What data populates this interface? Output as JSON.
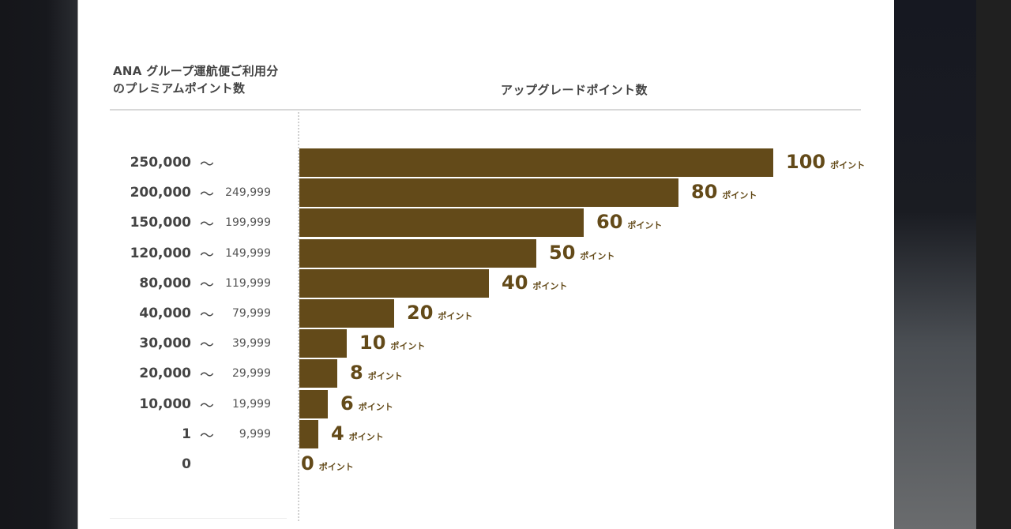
{
  "chart_data": {
    "type": "bar",
    "orientation": "horizontal",
    "title": "",
    "xlabel": "アップグレードポイント数",
    "ylabel": "ANA グループ運航便ご利用分のプレミアムポイント数",
    "categories": [
      "250,000 ～",
      "200,000 ～ 249,999",
      "150,000 ～ 199,999",
      "120,000 ～ 149,999",
      "80,000 ～ 119,999",
      "40,000 ～ 79,999",
      "30,000 ～ 39,999",
      "20,000 ～ 29,999",
      "10,000 ～ 19,999",
      "1 ～ 9,999",
      "0"
    ],
    "values": [
      100,
      80,
      60,
      50,
      40,
      20,
      10,
      8,
      6,
      4,
      0
    ],
    "value_unit": "ポイント",
    "xlim": [
      0,
      100
    ],
    "grid": false,
    "legend": "none",
    "bar_color": "#634a19"
  },
  "header": {
    "left_line1": "ANA グループ運航便ご利用分",
    "left_line2": "のプレミアムポイント数",
    "right": "アップグレードポイント数"
  },
  "rows": [
    {
      "from": "250,000",
      "tilde": "～",
      "to": "",
      "value": "100",
      "unit": "ポイント"
    },
    {
      "from": "200,000",
      "tilde": "～",
      "to": "249,999",
      "value": "80",
      "unit": "ポイント"
    },
    {
      "from": "150,000",
      "tilde": "～",
      "to": "199,999",
      "value": "60",
      "unit": "ポイント"
    },
    {
      "from": "120,000",
      "tilde": "～",
      "to": "149,999",
      "value": "50",
      "unit": "ポイント"
    },
    {
      "from": "80,000",
      "tilde": "～",
      "to": "119,999",
      "value": "40",
      "unit": "ポイント"
    },
    {
      "from": "40,000",
      "tilde": "～",
      "to": "79,999",
      "value": "20",
      "unit": "ポイント"
    },
    {
      "from": "30,000",
      "tilde": "～",
      "to": "39,999",
      "value": "10",
      "unit": "ポイント"
    },
    {
      "from": "20,000",
      "tilde": "～",
      "to": "29,999",
      "value": "8",
      "unit": "ポイント"
    },
    {
      "from": "10,000",
      "tilde": "～",
      "to": "19,999",
      "value": "6",
      "unit": "ポイント"
    },
    {
      "from": "1",
      "tilde": "～",
      "to": "9,999",
      "value": "4",
      "unit": "ポイント"
    },
    {
      "from": "0",
      "tilde": "",
      "to": "",
      "value": "0",
      "unit": "ポイント"
    }
  ]
}
